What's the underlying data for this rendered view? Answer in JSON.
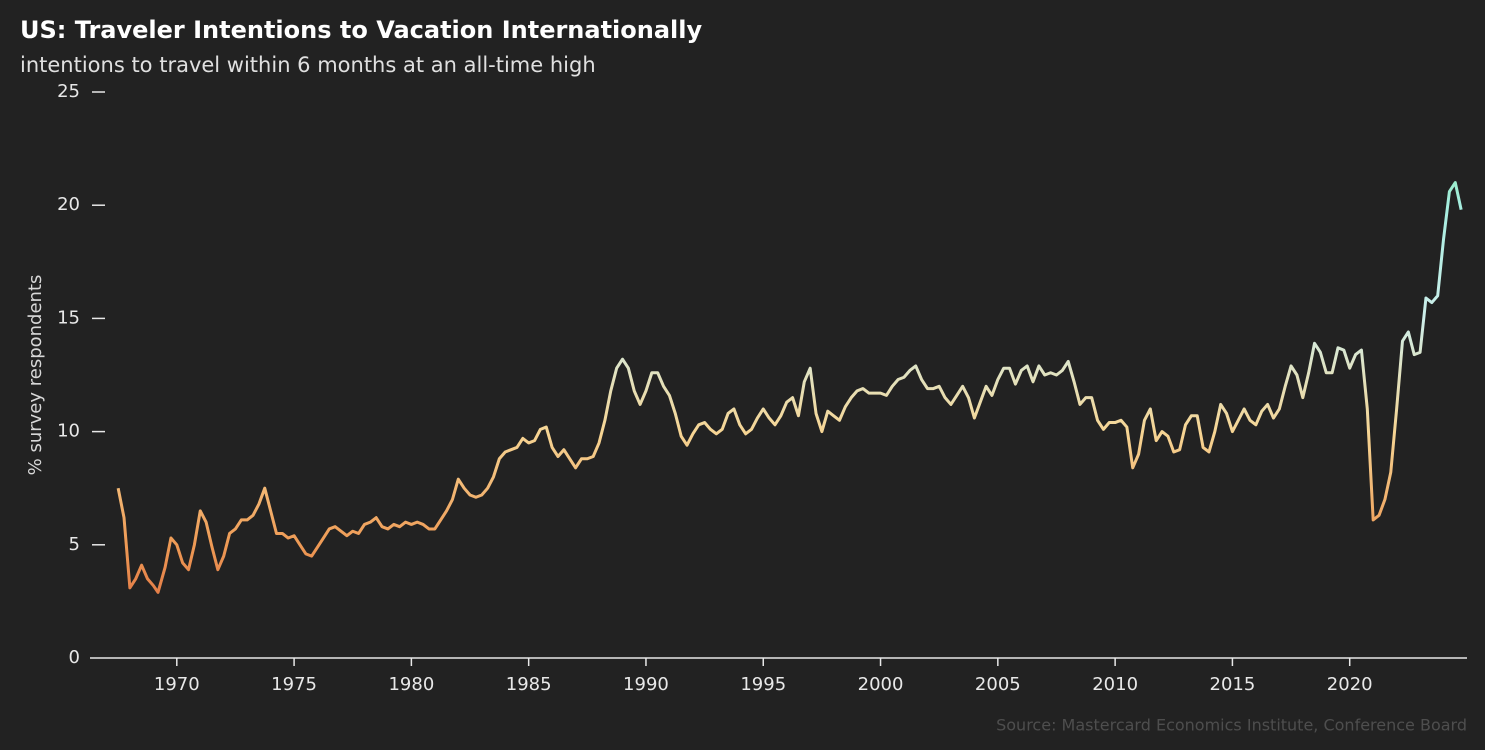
{
  "chart_data": {
    "type": "line",
    "title": "US: Traveler Intentions to Vacation Internationally",
    "subtitle": "intentions to travel within 6 months at an all-time high",
    "y_label": "% survey respondents",
    "source": "Source: Mastercard Economics Institute, Conference Board",
    "x": [
      1967.5,
      1967.75,
      1968,
      1968.25,
      1968.5,
      1968.75,
      1969,
      1969.2,
      1969.5,
      1969.75,
      1970,
      1970.25,
      1970.5,
      1970.75,
      1971,
      1971.25,
      1971.5,
      1971.75,
      1972,
      1972.25,
      1972.5,
      1972.75,
      1973,
      1973.25,
      1973.5,
      1973.75,
      1974,
      1974.25,
      1974.5,
      1974.75,
      1975,
      1975.25,
      1975.5,
      1975.75,
      1976,
      1976.25,
      1976.5,
      1976.75,
      1977,
      1977.25,
      1977.5,
      1977.75,
      1978,
      1978.25,
      1978.5,
      1978.75,
      1979,
      1979.25,
      1979.5,
      1979.75,
      1980,
      1980.25,
      1980.5,
      1980.75,
      1981,
      1981.25,
      1981.5,
      1981.75,
      1982,
      1982.25,
      1982.5,
      1982.75,
      1983,
      1983.25,
      1983.5,
      1983.75,
      1984,
      1984.25,
      1984.5,
      1984.75,
      1985,
      1985.25,
      1985.5,
      1985.75,
      1986,
      1986.25,
      1986.5,
      1986.75,
      1987,
      1987.25,
      1987.5,
      1987.75,
      1988,
      1988.25,
      1988.5,
      1988.75,
      1989,
      1989.25,
      1989.5,
      1989.75,
      1990,
      1990.25,
      1990.5,
      1990.75,
      1991,
      1991.25,
      1991.5,
      1991.75,
      1992,
      1992.25,
      1992.5,
      1992.75,
      1993,
      1993.25,
      1993.5,
      1993.75,
      1994,
      1994.25,
      1994.5,
      1994.75,
      1995,
      1995.25,
      1995.5,
      1995.75,
      1996,
      1996.25,
      1996.5,
      1996.75,
      1997,
      1997.25,
      1997.5,
      1997.75,
      1998,
      1998.25,
      1998.5,
      1998.75,
      1999,
      1999.25,
      1999.5,
      1999.75,
      2000,
      2000.25,
      2000.5,
      2000.75,
      2001,
      2001.25,
      2001.5,
      2001.75,
      2002,
      2002.25,
      2002.5,
      2002.75,
      2003,
      2003.25,
      2003.5,
      2003.75,
      2004,
      2004.25,
      2004.5,
      2004.75,
      2005,
      2005.25,
      2005.5,
      2005.75,
      2006,
      2006.25,
      2006.5,
      2006.75,
      2007,
      2007.25,
      2007.5,
      2007.75,
      2008,
      2008.25,
      2008.5,
      2008.75,
      2009,
      2009.25,
      2009.5,
      2009.75,
      2010,
      2010.25,
      2010.5,
      2010.75,
      2011,
      2011.25,
      2011.5,
      2011.75,
      2012,
      2012.25,
      2012.5,
      2012.75,
      2013,
      2013.25,
      2013.5,
      2013.75,
      2014,
      2014.25,
      2014.5,
      2014.75,
      2015,
      2015.25,
      2015.5,
      2015.75,
      2016,
      2016.25,
      2016.5,
      2016.75,
      2017,
      2017.25,
      2017.5,
      2017.75,
      2018,
      2018.25,
      2018.5,
      2018.75,
      2019,
      2019.25,
      2019.5,
      2019.75,
      2020,
      2020.25,
      2020.5,
      2020.75,
      2021,
      2021.25,
      2021.5,
      2021.75,
      2022,
      2022.25,
      2022.5,
      2022.75,
      2023,
      2023.25,
      2023.5,
      2023.75,
      2024,
      2024.25,
      2024.5,
      2024.75
    ],
    "values": [
      7.5,
      6.2,
      3.1,
      3.5,
      4.1,
      3.5,
      3.2,
      2.9,
      4.0,
      5.3,
      5.0,
      4.2,
      3.9,
      5.0,
      6.5,
      6.0,
      4.9,
      3.9,
      4.5,
      5.5,
      5.7,
      6.1,
      6.1,
      6.3,
      6.8,
      7.5,
      6.5,
      5.5,
      5.5,
      5.3,
      5.4,
      5.0,
      4.6,
      4.5,
      4.9,
      5.3,
      5.7,
      5.8,
      5.6,
      5.4,
      5.6,
      5.5,
      5.9,
      6.0,
      6.2,
      5.8,
      5.7,
      5.9,
      5.8,
      6.0,
      5.9,
      6.0,
      5.9,
      5.7,
      5.7,
      6.1,
      6.5,
      7.0,
      7.9,
      7.5,
      7.2,
      7.1,
      7.2,
      7.5,
      8.0,
      8.8,
      9.1,
      9.2,
      9.3,
      9.7,
      9.5,
      9.6,
      10.1,
      10.2,
      9.3,
      8.9,
      9.2,
      8.8,
      8.4,
      8.8,
      8.8,
      8.9,
      9.5,
      10.5,
      11.8,
      12.8,
      13.2,
      12.8,
      11.8,
      11.2,
      11.8,
      12.6,
      12.6,
      12.0,
      11.6,
      10.8,
      9.8,
      9.4,
      9.9,
      10.3,
      10.4,
      10.1,
      9.9,
      10.1,
      10.8,
      11.0,
      10.3,
      9.9,
      10.1,
      10.6,
      11.0,
      10.6,
      10.3,
      10.7,
      11.3,
      11.5,
      10.7,
      12.2,
      12.8,
      10.8,
      10.0,
      10.9,
      10.7,
      10.5,
      11.1,
      11.5,
      11.8,
      11.9,
      11.7,
      11.7,
      11.7,
      11.6,
      12.0,
      12.3,
      12.4,
      12.7,
      12.9,
      12.3,
      11.9,
      11.9,
      12.0,
      11.5,
      11.2,
      11.6,
      12.0,
      11.5,
      10.6,
      11.3,
      12.0,
      11.6,
      12.3,
      12.8,
      12.8,
      12.1,
      12.7,
      12.9,
      12.2,
      12.9,
      12.5,
      12.6,
      12.5,
      12.7,
      13.1,
      12.2,
      11.2,
      11.5,
      11.5,
      10.5,
      10.1,
      10.4,
      10.4,
      10.5,
      10.2,
      8.4,
      9.0,
      10.5,
      11.0,
      9.6,
      10.0,
      9.8,
      9.1,
      9.2,
      10.3,
      10.7,
      10.7,
      9.3,
      9.1,
      10.0,
      11.2,
      10.8,
      10.0,
      10.5,
      11.0,
      10.5,
      10.3,
      10.9,
      11.2,
      10.6,
      11.0,
      12.0,
      12.9,
      12.5,
      11.5,
      12.6,
      13.9,
      13.5,
      12.6,
      12.6,
      13.7,
      13.6,
      12.8,
      13.4,
      13.6,
      11.0,
      6.1,
      6.3,
      7.0,
      8.2,
      11.0,
      14.0,
      14.4,
      13.4,
      13.5,
      15.9,
      15.7,
      16.0,
      18.5,
      20.6,
      21.0,
      19.8
    ],
    "colors": [
      "#d65a37",
      "#ee9a55",
      "#f6d594",
      "#cdeeea",
      "#a6eee0",
      "#6fe27c"
    ],
    "xlim": [
      1966.3,
      2025
    ],
    "xticks": [
      1970,
      1975,
      1980,
      1985,
      1990,
      1995,
      2000,
      2005,
      2010,
      2015,
      2020
    ],
    "ylim": [
      0,
      25
    ],
    "yticks": [
      0,
      5,
      10,
      15,
      20,
      25
    ],
    "grid": false
  }
}
